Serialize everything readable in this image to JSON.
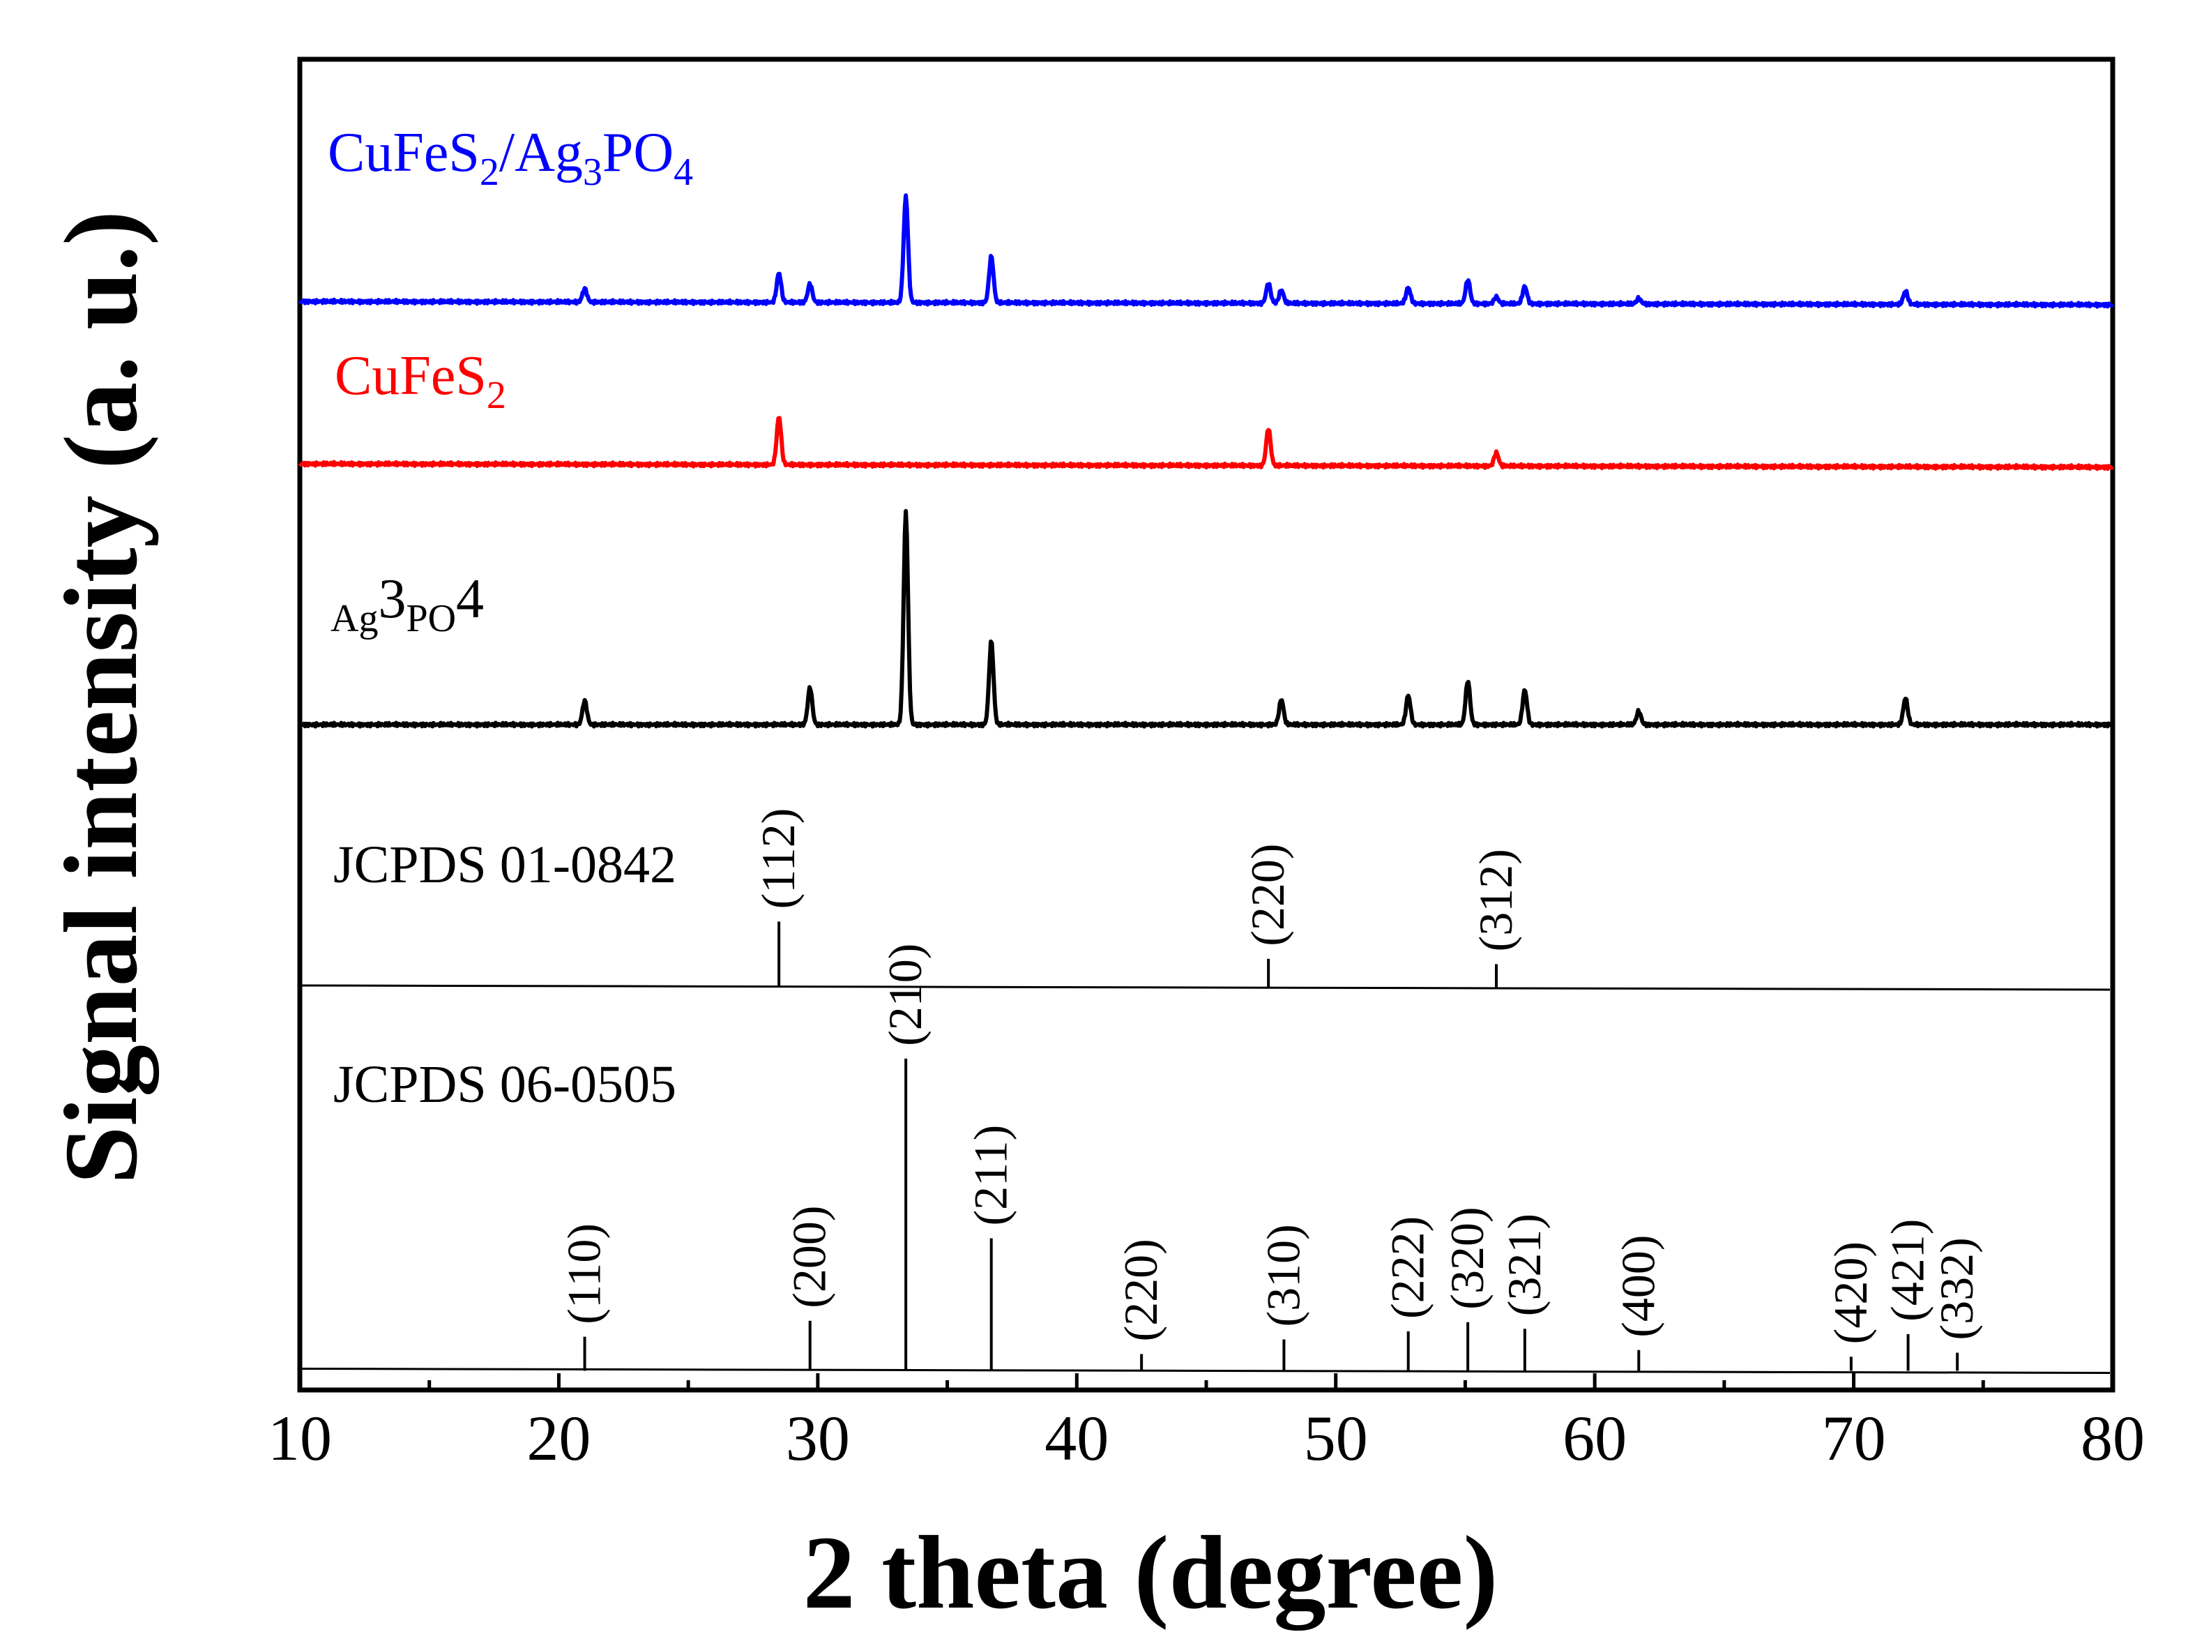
{
  "chart_data": {
    "type": "line",
    "title": "",
    "xlabel": "2 theta (degree)",
    "ylabel": "Signal intensity  (a. u.)",
    "xlim": [
      10,
      80
    ],
    "xticks": [
      "10",
      "20",
      "30",
      "40",
      "50",
      "60",
      "70",
      "80"
    ],
    "ylim": [
      0,
      100
    ],
    "ylim_note": "stacked offset plot, arbitrary units",
    "colors": {
      "composite": "#0000ff",
      "cufes2": "#ff0000",
      "ag3po4": "#000000",
      "reference": "#000000"
    },
    "series": [
      {
        "key": "composite",
        "label_parts": [
          "CuFeS",
          "2",
          "/Ag",
          "3",
          "PO",
          "4"
        ],
        "label_sub_flags": [
          false,
          true,
          false,
          true,
          false,
          true
        ],
        "baseline": 81.8,
        "peaks": [
          {
            "x": 21.0,
            "h": 1.0
          },
          {
            "x": 28.5,
            "h": 2.2
          },
          {
            "x": 29.7,
            "h": 1.4
          },
          {
            "x": 33.4,
            "h": 8.0
          },
          {
            "x": 36.7,
            "h": 3.5
          },
          {
            "x": 47.4,
            "h": 1.5
          },
          {
            "x": 47.9,
            "h": 1.0
          },
          {
            "x": 52.8,
            "h": 1.2
          },
          {
            "x": 55.1,
            "h": 1.8
          },
          {
            "x": 56.2,
            "h": 0.5
          },
          {
            "x": 57.3,
            "h": 1.3
          },
          {
            "x": 61.7,
            "h": 0.4
          },
          {
            "x": 72.0,
            "h": 1.0
          }
        ]
      },
      {
        "key": "cufes2",
        "label_parts": [
          "CuFeS",
          "2"
        ],
        "label_sub_flags": [
          false,
          true
        ],
        "baseline": 69.6,
        "peaks": [
          {
            "x": 28.5,
            "h": 3.6
          },
          {
            "x": 47.4,
            "h": 2.8
          },
          {
            "x": 56.2,
            "h": 1.0
          }
        ]
      },
      {
        "key": "ag3po4",
        "label_parts": [
          "Ag",
          "3",
          "PO",
          "4"
        ],
        "label_sub_flags": [
          true,
          false,
          true,
          false
        ],
        "baseline": 50.0,
        "peaks": [
          {
            "x": 21.0,
            "h": 1.8
          },
          {
            "x": 29.7,
            "h": 2.8
          },
          {
            "x": 33.4,
            "h": 16.0
          },
          {
            "x": 36.7,
            "h": 6.3
          },
          {
            "x": 47.9,
            "h": 1.9
          },
          {
            "x": 52.8,
            "h": 2.2
          },
          {
            "x": 55.1,
            "h": 3.3
          },
          {
            "x": 57.3,
            "h": 2.6
          },
          {
            "x": 61.7,
            "h": 1.0
          },
          {
            "x": 72.0,
            "h": 2.0
          }
        ]
      }
    ],
    "references": [
      {
        "label": "JCPDS 01-0842",
        "baseline": 30.4,
        "lines": [
          {
            "x": 28.5,
            "h": 4.8,
            "hkl": "(112)"
          },
          {
            "x": 47.4,
            "h": 2.0,
            "hkl": "(220)"
          },
          {
            "x": 56.2,
            "h": 1.6,
            "hkl": "(312)"
          }
        ]
      },
      {
        "label": "JCPDS 06-0505",
        "baseline": 1.6,
        "lines": [
          {
            "x": 21.0,
            "h": 2.4,
            "hkl": "(110)"
          },
          {
            "x": 29.7,
            "h": 3.6,
            "hkl": "(200)"
          },
          {
            "x": 33.4,
            "h": 23.3,
            "hkl": "(210)"
          },
          {
            "x": 36.7,
            "h": 9.8,
            "hkl": "(211)"
          },
          {
            "x": 42.5,
            "h": 1.1,
            "hkl": "(220)"
          },
          {
            "x": 48.0,
            "h": 2.2,
            "hkl": "(310)"
          },
          {
            "x": 52.8,
            "h": 2.8,
            "hkl": "(222)"
          },
          {
            "x": 55.1,
            "h": 3.5,
            "hkl": "(320)"
          },
          {
            "x": 57.3,
            "h": 3.0,
            "hkl": "(321)"
          },
          {
            "x": 61.7,
            "h": 1.4,
            "hkl": "(400)"
          },
          {
            "x": 69.9,
            "h": 0.9,
            "hkl": "(420)"
          },
          {
            "x": 72.1,
            "h": 2.6,
            "hkl": "(421)"
          },
          {
            "x": 74.0,
            "h": 1.2,
            "hkl": "(332)"
          }
        ]
      }
    ]
  }
}
